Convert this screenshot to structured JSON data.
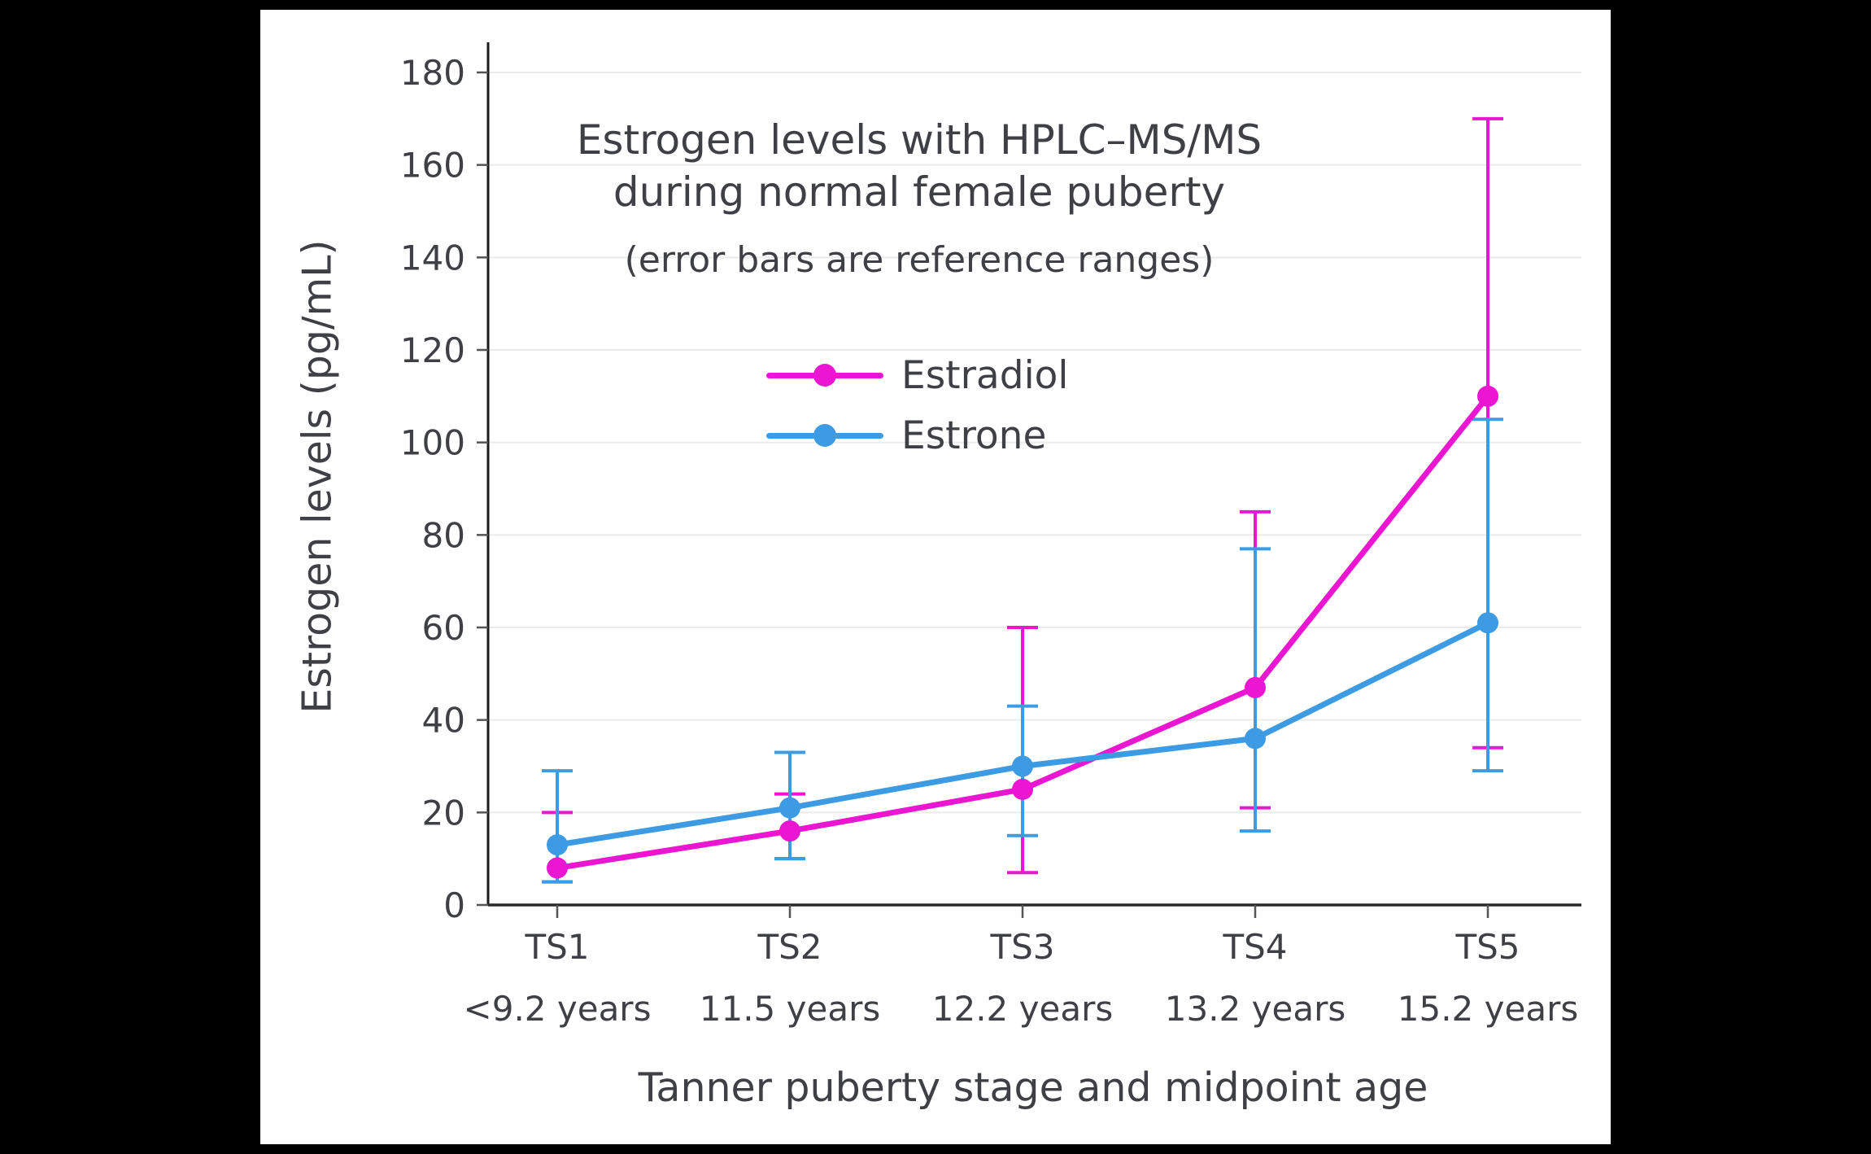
{
  "chart_data": {
    "type": "line",
    "title": "Estrogen levels with HPLC–MS/MS",
    "title_line2": "during normal female puberty",
    "subtitle": "(error bars are reference ranges)",
    "xlabel": "Tanner puberty stage and midpoint age",
    "ylabel": "Estrogen levels (pg/mL)",
    "ylim": [
      0,
      180
    ],
    "ytick_step": 20,
    "grid": true,
    "legend_position": "upper-left-inside",
    "categories": [
      "TS1",
      "TS2",
      "TS3",
      "TS4",
      "TS5"
    ],
    "category_sublabels": [
      "<9.2 years",
      "11.5 years",
      "12.2 years",
      "13.2 years",
      "15.2 years"
    ],
    "series": [
      {
        "name": "Estradiol",
        "color": "#EB16D2",
        "values": [
          8,
          16,
          25,
          47,
          110
        ],
        "range_low": [
          5,
          10,
          7,
          21,
          34
        ],
        "range_high": [
          20,
          24,
          60,
          85,
          170
        ]
      },
      {
        "name": "Estrone",
        "color": "#3D9BE3",
        "values": [
          13,
          21,
          30,
          36,
          61
        ],
        "range_low": [
          5,
          10,
          15,
          16,
          29
        ],
        "range_high": [
          29,
          33,
          43,
          77,
          105
        ]
      }
    ],
    "colors": {
      "text": "#3f4045",
      "grid": "#ebebeb",
      "axis": "#2b2b2b",
      "background": "#ffffff",
      "surround": "#000000"
    }
  }
}
